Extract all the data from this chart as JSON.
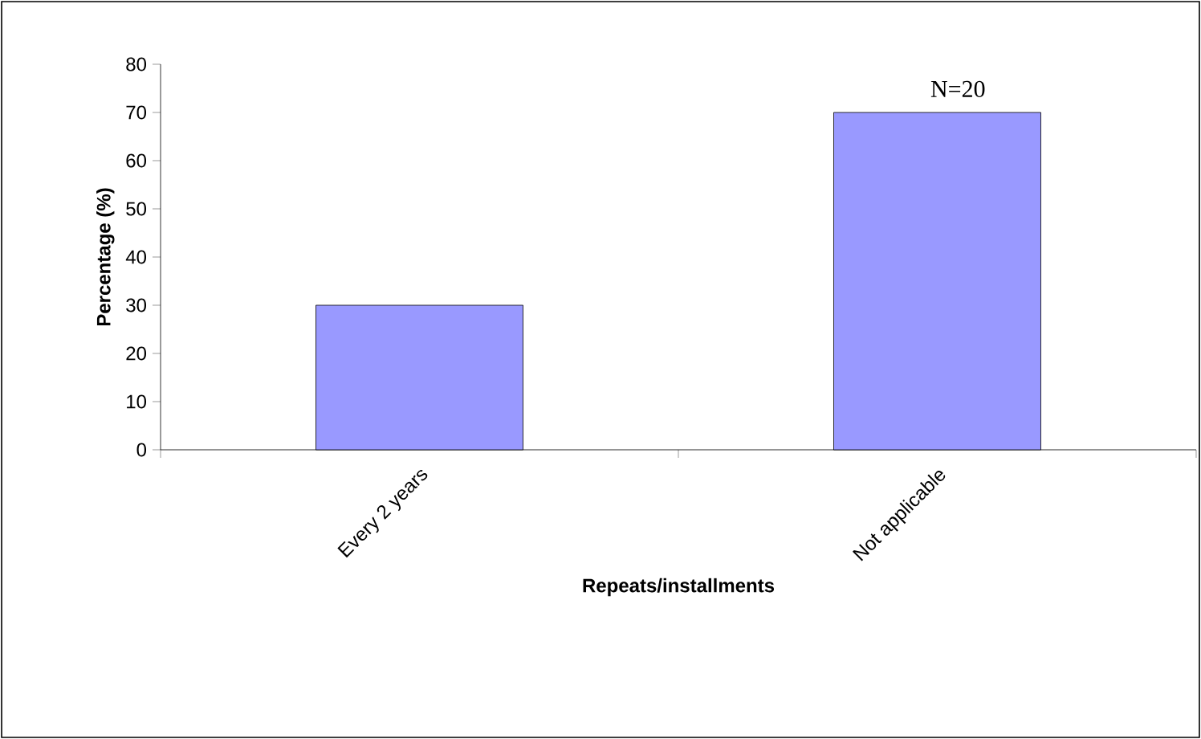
{
  "chart_data": {
    "type": "bar",
    "categories": [
      "Every 2 years",
      "Not applicable"
    ],
    "values": [
      30,
      70
    ],
    "color": "#9999ff",
    "xlabel": "Repeats/installments",
    "ylabel": "Percentage (%)",
    "ylim": [
      0,
      80
    ],
    "yticks": [
      0,
      10,
      20,
      30,
      40,
      50,
      60,
      70,
      80
    ],
    "annotations": [
      "N=20"
    ]
  }
}
